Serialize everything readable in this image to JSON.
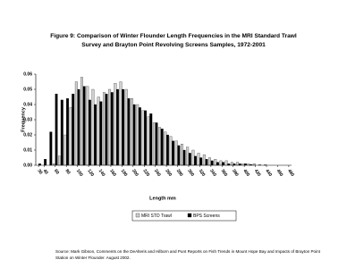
{
  "chart_data": {
    "type": "bar",
    "title": "Figure 9: Comparison of Winter Flounder Length Frequencies in the MRI Standard Trawl",
    "subtitle": "Survey and Brayton Point Revolving Screens Samples, 1972-2001",
    "x_label": "Length mm",
    "y_label": "Frequency",
    "x": [
      30,
      40,
      50,
      60,
      70,
      80,
      90,
      100,
      110,
      120,
      130,
      140,
      150,
      160,
      170,
      180,
      190,
      200,
      210,
      220,
      230,
      240,
      250,
      260,
      270,
      280,
      290,
      300,
      310,
      320,
      330,
      340,
      350,
      360,
      370,
      380,
      390,
      400,
      410,
      420,
      430,
      440,
      450,
      460,
      470,
      480
    ],
    "series": [
      {
        "name": "MRI STD Trawl",
        "color": "#d0d0d0",
        "values": [
          0,
          0,
          0,
          0.001,
          0.006,
          0.02,
          0.038,
          0.055,
          0.058,
          0.052,
          0.05,
          0.045,
          0.048,
          0.05,
          0.054,
          0.055,
          0.05,
          0.044,
          0.04,
          0.036,
          0.032,
          0.028,
          0.025,
          0.022,
          0.019,
          0.016,
          0.014,
          0.012,
          0.01,
          0.008,
          0.007,
          0.005,
          0.004,
          0.003,
          0.003,
          0.002,
          0.002,
          0.001,
          0.001,
          0.001,
          0.0005,
          0.0005,
          0,
          0,
          0,
          0
        ]
      },
      {
        "name": "BPS Screens",
        "color": "#000000",
        "values": [
          0.001,
          0.004,
          0.022,
          0.047,
          0.043,
          0.044,
          0.047,
          0.05,
          0.052,
          0.043,
          0.04,
          0.042,
          0.047,
          0.048,
          0.05,
          0.05,
          0.044,
          0.04,
          0.038,
          0.036,
          0.034,
          0.028,
          0.024,
          0.02,
          0.016,
          0.013,
          0.01,
          0.008,
          0.006,
          0.005,
          0.004,
          0.003,
          0.002,
          0.002,
          0.001,
          0.001,
          0.001,
          0.001,
          0.0005,
          0,
          0,
          0,
          0,
          0,
          0,
          0
        ]
      }
    ],
    "xlim": [
      25,
      485
    ],
    "xticks": [
      30,
      40,
      60,
      80,
      100,
      120,
      140,
      160,
      180,
      200,
      220,
      240,
      260,
      280,
      300,
      320,
      340,
      360,
      380,
      400,
      420,
      440,
      460,
      480
    ],
    "ylim": [
      0,
      0.06
    ],
    "yticks": [
      {
        "value": 0,
        "label": "0.00"
      },
      {
        "value": 0.01,
        "label": "0.01"
      },
      {
        "value": 0.02,
        "label": "0.02"
      },
      {
        "value": 0.03,
        "label": "0.03"
      },
      {
        "value": 0.04,
        "label": "0.04"
      },
      {
        "value": 0.05,
        "label": "0.05"
      },
      {
        "value": 0.06,
        "label": "0.06"
      }
    ],
    "grid": false,
    "legend": "bottom",
    "source": "Source: Mark Gibson, Comments on the DeAlteris and Hilborn and Punt Reports on Fish Trends in Mount Hope Bay and Impacts of Brayton Point",
    "source_2": "Station on Winter Flounder. August 2002."
  }
}
